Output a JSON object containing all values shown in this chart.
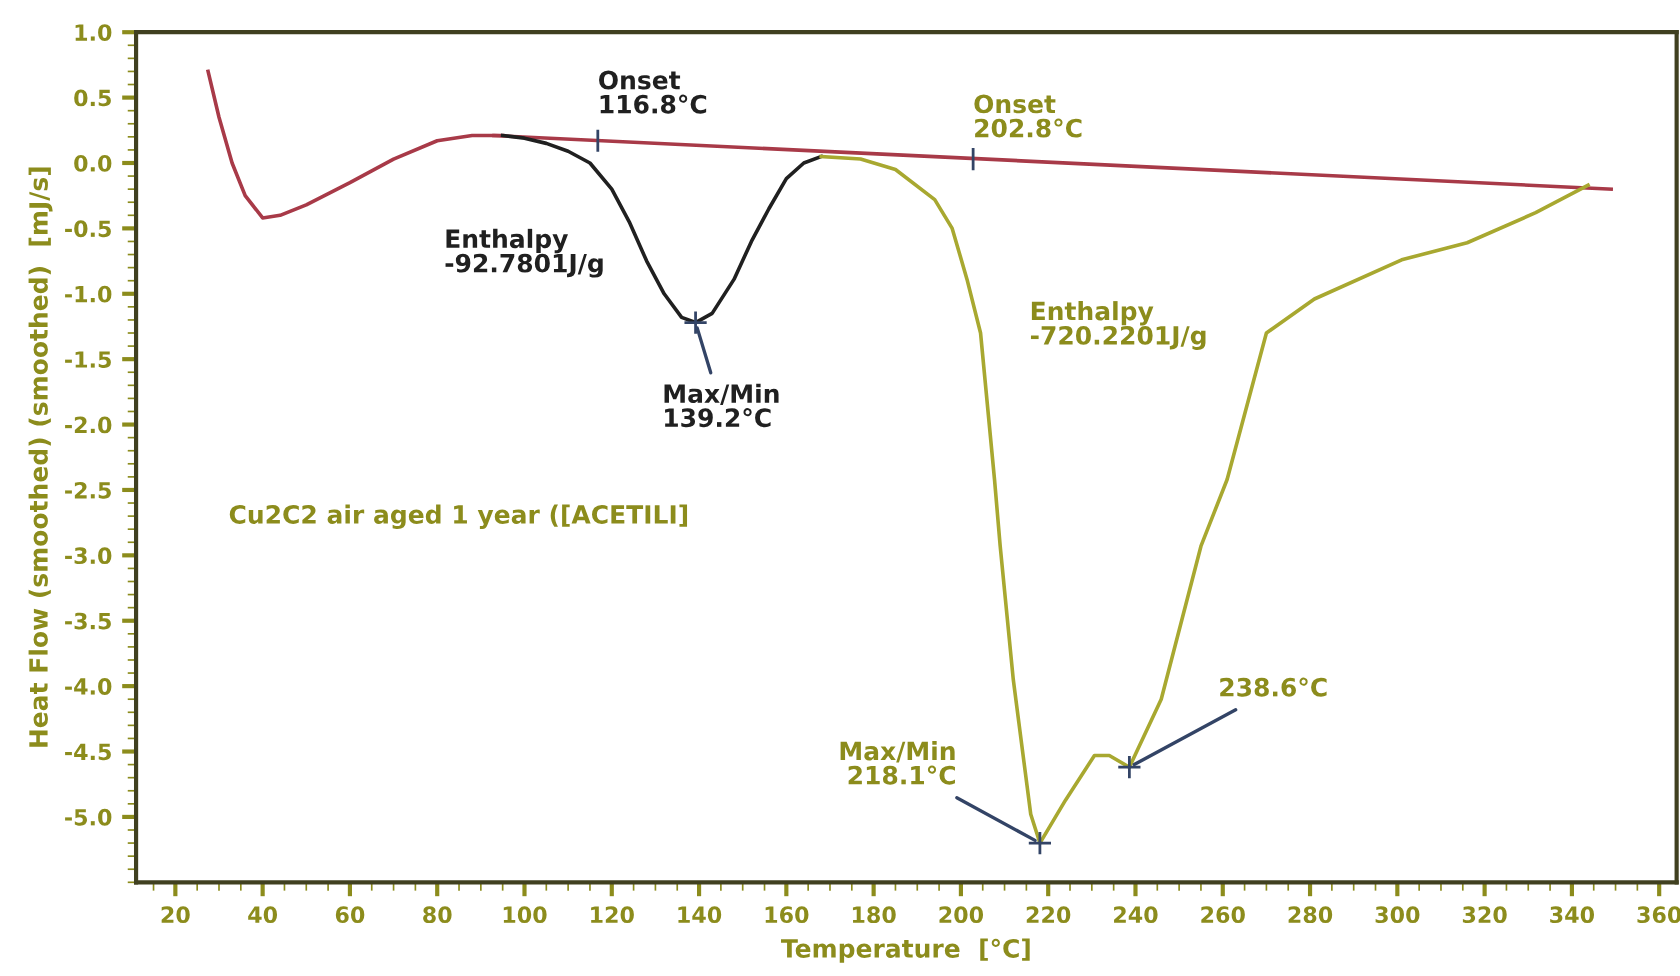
{
  "chart_data": {
    "type": "line",
    "xlabel": "Temperature  [°C]",
    "ylabel": "Heat Flow (smoothed) (smoothed)  [mJ/s]",
    "xlim": [
      11,
      364
    ],
    "ylim": [
      -5.5,
      1.0
    ],
    "xticks": [
      20,
      40,
      60,
      80,
      100,
      120,
      140,
      160,
      180,
      200,
      220,
      240,
      260,
      280,
      300,
      320,
      340,
      360
    ],
    "yticks": [
      {
        "value": 1.0,
        "label": "1.0"
      },
      {
        "value": 0.5,
        "label": "0.5"
      },
      {
        "value": 0.0,
        "label": "0.0"
      },
      {
        "value": -0.5,
        "label": "-0.5"
      },
      {
        "value": -1.0,
        "label": "-1.0"
      },
      {
        "value": -1.5,
        "label": "-1.5"
      },
      {
        "value": -2.0,
        "label": "-2.0"
      },
      {
        "value": -2.5,
        "label": "-2.5"
      },
      {
        "value": -3.0,
        "label": "-3.0"
      },
      {
        "value": -3.5,
        "label": "-3.5"
      },
      {
        "value": -4.0,
        "label": "-4.0"
      },
      {
        "value": -4.5,
        "label": "-4.5"
      },
      {
        "value": -5.0,
        "label": "-5.0"
      }
    ],
    "grid": false,
    "legend": false,
    "marker": "none",
    "line_style": "solid",
    "series": [
      {
        "color": "#a83a48",
        "x": [
          27.5,
          30,
          33,
          36,
          40,
          44,
          50,
          60,
          70,
          80,
          88,
          95
        ],
        "values": [
          0.7,
          0.35,
          0.0,
          -0.25,
          -0.42,
          -0.4,
          -0.32,
          -0.15,
          0.03,
          0.17,
          0.21,
          0.21
        ]
      },
      {
        "color": "#a83a48",
        "x": [
          93,
          349
        ],
        "values": [
          0.21,
          -0.2
        ]
      },
      {
        "color": "#202020",
        "x": [
          95,
          100,
          105,
          110,
          115,
          120,
          124,
          128,
          132,
          136,
          139.2,
          143,
          148,
          152,
          156,
          160,
          164,
          168
        ],
        "values": [
          0.21,
          0.19,
          0.15,
          0.09,
          0.0,
          -0.2,
          -0.45,
          -0.75,
          -1.0,
          -1.18,
          -1.22,
          -1.15,
          -0.89,
          -0.6,
          -0.35,
          -0.12,
          0.0,
          0.05
        ]
      },
      {
        "color": "#a8a830",
        "x": [
          168,
          177,
          185,
          194,
          198,
          201.4,
          204.5,
          207.7,
          209,
          212,
          216,
          218.1,
          224,
          230.6,
          234,
          238.6,
          245.9,
          255,
          261,
          270,
          281,
          301,
          316,
          331.7,
          343.7
        ],
        "values": [
          0.05,
          0.03,
          -0.05,
          -0.28,
          -0.5,
          -0.89,
          -1.3,
          -2.42,
          -2.93,
          -3.95,
          -4.98,
          -5.2,
          -4.87,
          -4.53,
          -4.53,
          -4.62,
          -4.1,
          -2.93,
          -2.42,
          -1.3,
          -1.04,
          -0.74,
          -0.61,
          -0.38,
          -0.17
        ]
      }
    ],
    "annotations": [
      {
        "text": "Onset\n116.8°C",
        "x": 116.8,
        "y": 0.17
      },
      "Enthalpy\n-92.7801J/g",
      {
        "text": "Max/Min\n139.2°C",
        "x": 139.2,
        "y": -1.22
      },
      {
        "text": "Onset\n202.8°C",
        "x": 202.8,
        "y": 0.03
      },
      "Enthalpy\n-720.2201J/g",
      {
        "text": "Max/Min\n218.1°C",
        "x": 218.1,
        "y": -5.2
      },
      {
        "text": "238.6°C",
        "x": 238.6,
        "y": -4.62
      },
      "Cu2C2 air aged 1 year ([ACETILI]"
    ]
  }
}
